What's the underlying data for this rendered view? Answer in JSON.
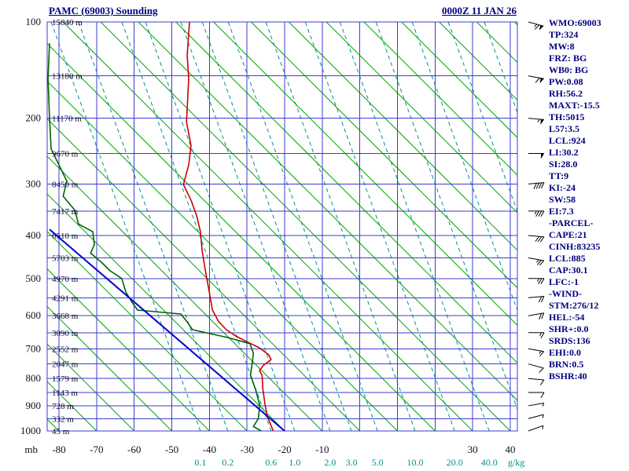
{
  "header": {
    "title": "PAMC (69003) Sounding",
    "date": "0000Z 11 JAN 26"
  },
  "stats": [
    "WMO:69003",
    "TP:324",
    "MW:8",
    "FRZ: BG",
    "WB0: BG",
    "PW:0.08",
    "RH:56.2",
    "MAXT:-15.5",
    "TH:5015",
    "L57:3.5",
    "LCL:924",
    "LI:30.2",
    "SI:28.0",
    "TT:9",
    "KI:-24",
    "SW:58",
    "EI:7.3",
    "-PARCEL-",
    "CAPE:21",
    "CINH:83235",
    "LCL:885",
    "CAP:30.1",
    "LFC:-1",
    "-WIND-",
    "STM:276/12",
    "HEL:-54",
    "SHR+:0.0",
    "SRDS:136",
    "EHI:0.0",
    "BRN:0.5",
    "BSHR:40"
  ],
  "colors": {
    "grid": "#3c3cd2",
    "adiabat": "#00a400",
    "mixing": "#009090",
    "temperature": "#cc0000",
    "dewpoint": "#006400",
    "parcel": "#0000cc",
    "axis_text": "#101020",
    "navy_text": "#000080",
    "barb": "#000000"
  },
  "chart_data": {
    "type": "line",
    "subtype": "stuve_sounding",
    "title": "PAMC (69003) Sounding",
    "pressure_axis": {
      "unit": "mb",
      "min": 100,
      "max": 1000,
      "scale_exponent": 0.286,
      "grid_step_mb": 50,
      "labeled_ticks": [
        100,
        200,
        300,
        400,
        500,
        600,
        700,
        800,
        900,
        1000
      ]
    },
    "temperature_axis": {
      "unit": "C",
      "min": -80,
      "max": 40,
      "grid_step_c": 10,
      "labeled_ticks": [
        -80,
        -70,
        -60,
        -50,
        -40,
        -30,
        -20,
        -10,
        30,
        40
      ]
    },
    "mixing_ratio_axis": {
      "unit": "g/kg",
      "temp_shift_top_c": -39.7,
      "labels": [
        {
          "value": "0.1",
          "t1000": -42.4
        },
        {
          "value": "0.2",
          "t1000": -35.1
        },
        {
          "value": "0.6",
          "t1000": -23.6
        },
        {
          "value": "1.0",
          "t1000": -17.3
        },
        {
          "value": "2.0",
          "t1000": -7.9
        },
        {
          "value": "3.0",
          "t1000": -2.2
        },
        {
          "value": "5.0",
          "t1000": 4.7
        },
        {
          "value": "10.0",
          "t1000": 14.7
        },
        {
          "value": "20.0",
          "t1000": 25.2
        },
        {
          "value": "40.0",
          "t1000": 34.4
        }
      ],
      "unlabeled_t1000": [
        44.0,
        53.6,
        63.2,
        72.8,
        81.6
      ]
    },
    "dry_adiabats": {
      "t1000_min": -80,
      "t1000_max": 150,
      "step": 10,
      "temp_shift_top_c": -108.9
    },
    "altitude_labels": [
      {
        "p": 100,
        "text": "15840 m"
      },
      {
        "p": 150,
        "text": "13180 m"
      },
      {
        "p": 200,
        "text": "11170 m"
      },
      {
        "p": 250,
        "text": "9670 m"
      },
      {
        "p": 300,
        "text": "8450 m"
      },
      {
        "p": 350,
        "text": "7417 m"
      },
      {
        "p": 400,
        "text": "6510 m"
      },
      {
        "p": 450,
        "text": "5703 m"
      },
      {
        "p": 500,
        "text": "4970 m"
      },
      {
        "p": 550,
        "text": "4291 m"
      },
      {
        "p": 600,
        "text": "3668 m"
      },
      {
        "p": 650,
        "text": "3090 m"
      },
      {
        "p": 700,
        "text": "2552 m"
      },
      {
        "p": 750,
        "text": "2047 m"
      },
      {
        "p": 800,
        "text": "1579 m"
      },
      {
        "p": 850,
        "text": "1143 m"
      },
      {
        "p": 900,
        "text": "728 m"
      },
      {
        "p": 950,
        "text": "332 m"
      },
      {
        "p": 1000,
        "text": "45 m"
      }
    ],
    "series": [
      {
        "name": "temperature",
        "color": "#cc0000",
        "points": [
          [
            100,
            -45.3
          ],
          [
            129,
            -45.9
          ],
          [
            153,
            -45.5
          ],
          [
            205,
            -46.1
          ],
          [
            238,
            -44.9
          ],
          [
            268,
            -45.5
          ],
          [
            301,
            -46.9
          ],
          [
            329,
            -44.9
          ],
          [
            359,
            -43.4
          ],
          [
            392,
            -42.4
          ],
          [
            435,
            -41.9
          ],
          [
            489,
            -40.9
          ],
          [
            531,
            -40.1
          ],
          [
            584,
            -39.2
          ],
          [
            618,
            -37.5
          ],
          [
            641,
            -35.5
          ],
          [
            660,
            -33.0
          ],
          [
            679,
            -29.8
          ],
          [
            697,
            -26.7
          ],
          [
            720,
            -24.2
          ],
          [
            735,
            -23.6
          ],
          [
            754,
            -25.6
          ],
          [
            772,
            -26.7
          ],
          [
            788,
            -26.0
          ],
          [
            836,
            -25.8
          ],
          [
            896,
            -25.2
          ],
          [
            941,
            -24.6
          ],
          [
            982,
            -23.5
          ],
          [
            1000,
            -23.0
          ]
        ]
      },
      {
        "name": "dewpoint",
        "color": "#006400",
        "points": [
          [
            118,
            -82.5
          ],
          [
            153,
            -82.9
          ],
          [
            200,
            -82.5
          ],
          [
            243,
            -82.1
          ],
          [
            268,
            -80.0
          ],
          [
            295,
            -77.9
          ],
          [
            322,
            -78.9
          ],
          [
            348,
            -75.8
          ],
          [
            376,
            -74.8
          ],
          [
            392,
            -71.0
          ],
          [
            420,
            -70.6
          ],
          [
            439,
            -71.6
          ],
          [
            462,
            -68.5
          ],
          [
            481,
            -66.4
          ],
          [
            500,
            -63.3
          ],
          [
            535,
            -62.2
          ],
          [
            562,
            -60.6
          ],
          [
            584,
            -59.1
          ],
          [
            595,
            -47.6
          ],
          [
            618,
            -45.9
          ],
          [
            641,
            -44.5
          ],
          [
            665,
            -35.0
          ],
          [
            684,
            -29.2
          ],
          [
            715,
            -28.3
          ],
          [
            754,
            -28.7
          ],
          [
            788,
            -29.1
          ],
          [
            841,
            -27.7
          ],
          [
            898,
            -26.6
          ],
          [
            950,
            -27.0
          ],
          [
            982,
            -28.3
          ],
          [
            1000,
            -26.2
          ]
        ]
      },
      {
        "name": "parcel",
        "color": "#0000cc",
        "points": [
          [
            387,
            -82.5
          ],
          [
            1000,
            -20.0
          ]
        ]
      }
    ],
    "wind_barbs": [
      {
        "p": 100,
        "dir": 285,
        "spd": 65
      },
      {
        "p": 150,
        "dir": 280,
        "spd": 60
      },
      {
        "p": 200,
        "dir": 275,
        "spd": 55
      },
      {
        "p": 250,
        "dir": 270,
        "spd": 50
      },
      {
        "p": 300,
        "dir": 265,
        "spd": 40
      },
      {
        "p": 350,
        "dir": 270,
        "spd": 35
      },
      {
        "p": 400,
        "dir": 275,
        "spd": 30
      },
      {
        "p": 450,
        "dir": 280,
        "spd": 25
      },
      {
        "p": 500,
        "dir": 270,
        "spd": 25
      },
      {
        "p": 550,
        "dir": 265,
        "spd": 20
      },
      {
        "p": 600,
        "dir": 260,
        "spd": 20
      },
      {
        "p": 650,
        "dir": 270,
        "spd": 15
      },
      {
        "p": 700,
        "dir": 280,
        "spd": 15
      },
      {
        "p": 750,
        "dir": 285,
        "spd": 10
      },
      {
        "p": 800,
        "dir": 275,
        "spd": 10
      },
      {
        "p": 850,
        "dir": 270,
        "spd": 10
      },
      {
        "p": 900,
        "dir": 260,
        "spd": 5
      },
      {
        "p": 950,
        "dir": 255,
        "spd": 5
      },
      {
        "p": 1000,
        "dir": 250,
        "spd": 5
      }
    ]
  }
}
